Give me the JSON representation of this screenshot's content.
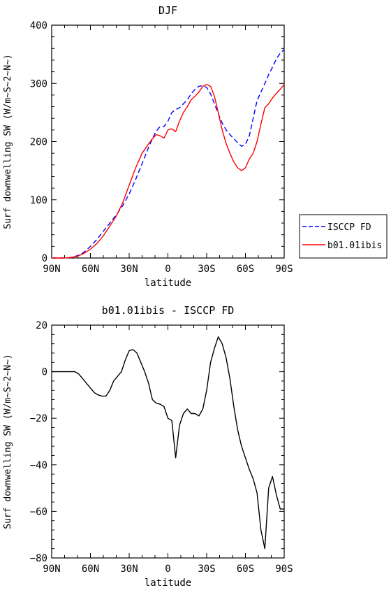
{
  "chart_data": [
    {
      "type": "line",
      "title": "DJF",
      "xlabel": "latitude",
      "ylabel": "Surf downwelling SW (W/m~S~2~N~)",
      "xlim": [
        -90,
        90
      ],
      "ylim": [
        0,
        400
      ],
      "x_ticks": [
        -90,
        -60,
        -30,
        0,
        30,
        60,
        90
      ],
      "x_tick_labels": [
        "90N",
        "60N",
        "30N",
        "0",
        "30S",
        "60S",
        "90S"
      ],
      "y_ticks": [
        0,
        100,
        200,
        300,
        400
      ],
      "y_tick_labels": [
        "0",
        "100",
        "200",
        "300",
        "400"
      ],
      "grid": false,
      "legend_position": "right",
      "series": [
        {
          "name": "ISCCP FD",
          "color": "#0000ff",
          "dash": "dashed",
          "x": [
            -90,
            -85,
            -80,
            -75,
            -70,
            -65,
            -60,
            -55,
            -50,
            -45,
            -40,
            -35,
            -30,
            -25,
            -20,
            -15,
            -12,
            -9,
            -6,
            -3,
            0,
            3,
            6,
            9,
            12,
            15,
            18,
            21,
            24,
            27,
            30,
            33,
            36,
            39,
            42,
            45,
            48,
            51,
            54,
            57,
            60,
            63,
            66,
            69,
            72,
            75,
            78,
            81,
            84,
            87,
            90
          ],
          "y": [
            0,
            0,
            0,
            1,
            4,
            10,
            20,
            32,
            46,
            60,
            74,
            90,
            110,
            135,
            162,
            190,
            205,
            218,
            226,
            226,
            235,
            250,
            255,
            258,
            265,
            272,
            282,
            290,
            295,
            296,
            293,
            282,
            265,
            248,
            232,
            220,
            212,
            205,
            198,
            192,
            195,
            210,
            240,
            270,
            285,
            300,
            315,
            328,
            342,
            352,
            358
          ]
        },
        {
          "name": "b01.01ibis",
          "color": "#ff0000",
          "dash": "solid",
          "x": [
            -90,
            -85,
            -80,
            -75,
            -70,
            -65,
            -60,
            -55,
            -50,
            -45,
            -40,
            -35,
            -30,
            -25,
            -20,
            -15,
            -12,
            -9,
            -6,
            -3,
            0,
            3,
            6,
            9,
            12,
            15,
            18,
            21,
            24,
            27,
            30,
            33,
            36,
            39,
            42,
            45,
            48,
            51,
            54,
            57,
            60,
            63,
            66,
            69,
            72,
            75,
            78,
            81,
            84,
            87,
            90
          ],
          "y": [
            0,
            0,
            0,
            1,
            3,
            8,
            15,
            25,
            38,
            55,
            72,
            95,
            125,
            155,
            180,
            196,
            205,
            212,
            210,
            206,
            220,
            222,
            217,
            235,
            250,
            260,
            272,
            278,
            285,
            295,
            298,
            295,
            278,
            250,
            220,
            197,
            180,
            165,
            155,
            150,
            155,
            170,
            180,
            200,
            230,
            258,
            265,
            275,
            283,
            290,
            298
          ]
        }
      ]
    },
    {
      "type": "line",
      "title": "b01.01ibis - ISCCP FD",
      "xlabel": "latitude",
      "ylabel": "Surf downwelling SW (W/m~S~2~N~)",
      "xlim": [
        -90,
        90
      ],
      "ylim": [
        -80,
        20
      ],
      "x_ticks": [
        -90,
        -60,
        -30,
        0,
        30,
        60,
        90
      ],
      "x_tick_labels": [
        "90N",
        "60N",
        "30N",
        "0",
        "30S",
        "60S",
        "90S"
      ],
      "y_ticks": [
        -80,
        -60,
        -40,
        -20,
        0,
        20
      ],
      "y_tick_labels": [
        "−80",
        "−60",
        "−40",
        "−20",
        "0",
        "20"
      ],
      "grid": false,
      "series": [
        {
          "color": "#000000",
          "dash": "solid",
          "x": [
            -90,
            -85,
            -80,
            -75,
            -72,
            -69,
            -66,
            -63,
            -60,
            -57,
            -54,
            -51,
            -48,
            -45,
            -42,
            -39,
            -36,
            -33,
            -30,
            -27,
            -24,
            -21,
            -18,
            -15,
            -12,
            -9,
            -6,
            -3,
            0,
            3,
            6,
            9,
            12,
            15,
            18,
            21,
            24,
            27,
            30,
            33,
            36,
            39,
            42,
            45,
            48,
            51,
            54,
            57,
            60,
            63,
            66,
            69,
            72,
            75,
            78,
            81,
            84,
            87,
            90
          ],
          "y": [
            0,
            0,
            0,
            0,
            0,
            -1,
            -3,
            -5,
            -7,
            -9,
            -10,
            -10.5,
            -10.5,
            -8,
            -4,
            -2,
            0,
            5,
            9,
            9.5,
            8,
            4,
            0,
            -5,
            -12,
            -13.5,
            -14,
            -15,
            -20,
            -21,
            -37,
            -23,
            -18,
            -16,
            -18,
            -18,
            -19,
            -16,
            -8,
            4,
            10,
            15,
            12,
            6,
            -3,
            -15,
            -25,
            -32,
            -37,
            -42,
            -46,
            -52,
            -68,
            -76,
            -50,
            -45,
            -53,
            -59,
            -59
          ]
        }
      ]
    }
  ]
}
